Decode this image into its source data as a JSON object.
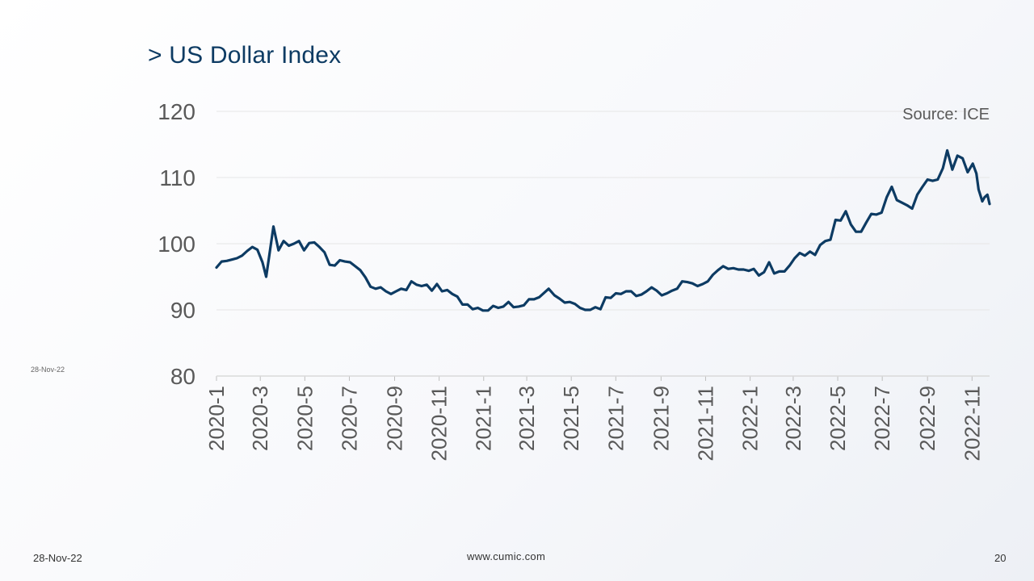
{
  "slide": {
    "title": "> US Dollar Index",
    "side_date": "28-Nov-22",
    "footer_date": "28-Nov-22",
    "footer_site": "www.cumic.com",
    "page_number": "20"
  },
  "colors": {
    "line": "#0d3b63",
    "grid": "#e6e6e6",
    "text": "#595959"
  },
  "chart_data": {
    "type": "line",
    "source": "Source: ICE",
    "ylim": [
      80,
      120
    ],
    "yticks": [
      80,
      90,
      100,
      110,
      120
    ],
    "xticks": [
      "2020-1",
      "2020-3",
      "2020-5",
      "2020-7",
      "2020-9",
      "2020-11",
      "2021-1",
      "2021-3",
      "2021-5",
      "2021-7",
      "2021-9",
      "2021-11",
      "2022-1",
      "2022-3",
      "2022-5",
      "2022-7",
      "2022-9",
      "2022-11"
    ],
    "grid": "horizontal",
    "series": [
      {
        "points": [
          [
            "2020-01-01",
            96.4
          ],
          [
            "2020-01-08",
            97.3
          ],
          [
            "2020-01-15",
            97.4
          ],
          [
            "2020-01-22",
            97.6
          ],
          [
            "2020-01-29",
            97.8
          ],
          [
            "2020-02-05",
            98.2
          ],
          [
            "2020-02-12",
            98.9
          ],
          [
            "2020-02-19",
            99.5
          ],
          [
            "2020-02-26",
            99.1
          ],
          [
            "2020-03-04",
            97.2
          ],
          [
            "2020-03-09",
            95.0
          ],
          [
            "2020-03-13",
            98.0
          ],
          [
            "2020-03-19",
            102.6
          ],
          [
            "2020-03-26",
            99.0
          ],
          [
            "2020-04-02",
            100.4
          ],
          [
            "2020-04-09",
            99.7
          ],
          [
            "2020-04-16",
            100.0
          ],
          [
            "2020-04-23",
            100.4
          ],
          [
            "2020-04-30",
            99.0
          ],
          [
            "2020-05-07",
            100.1
          ],
          [
            "2020-05-14",
            100.2
          ],
          [
            "2020-05-21",
            99.5
          ],
          [
            "2020-05-28",
            98.7
          ],
          [
            "2020-06-04",
            96.8
          ],
          [
            "2020-06-11",
            96.7
          ],
          [
            "2020-06-18",
            97.5
          ],
          [
            "2020-06-25",
            97.3
          ],
          [
            "2020-07-02",
            97.2
          ],
          [
            "2020-07-09",
            96.6
          ],
          [
            "2020-07-16",
            96.0
          ],
          [
            "2020-07-23",
            94.9
          ],
          [
            "2020-07-30",
            93.5
          ],
          [
            "2020-08-06",
            93.2
          ],
          [
            "2020-08-13",
            93.4
          ],
          [
            "2020-08-20",
            92.8
          ],
          [
            "2020-08-27",
            92.4
          ],
          [
            "2020-09-03",
            92.8
          ],
          [
            "2020-09-10",
            93.2
          ],
          [
            "2020-09-17",
            93.0
          ],
          [
            "2020-09-24",
            94.3
          ],
          [
            "2020-10-01",
            93.8
          ],
          [
            "2020-10-08",
            93.6
          ],
          [
            "2020-10-15",
            93.8
          ],
          [
            "2020-10-22",
            92.9
          ],
          [
            "2020-10-29",
            93.9
          ],
          [
            "2020-11-05",
            92.8
          ],
          [
            "2020-11-12",
            93.0
          ],
          [
            "2020-11-19",
            92.4
          ],
          [
            "2020-11-26",
            92.0
          ],
          [
            "2020-12-03",
            90.8
          ],
          [
            "2020-12-10",
            90.8
          ],
          [
            "2020-12-17",
            90.1
          ],
          [
            "2020-12-24",
            90.3
          ],
          [
            "2020-12-31",
            89.9
          ],
          [
            "2021-01-07",
            89.9
          ],
          [
            "2021-01-14",
            90.6
          ],
          [
            "2021-01-21",
            90.3
          ],
          [
            "2021-01-28",
            90.5
          ],
          [
            "2021-02-04",
            91.2
          ],
          [
            "2021-02-11",
            90.4
          ],
          [
            "2021-02-18",
            90.5
          ],
          [
            "2021-02-25",
            90.7
          ],
          [
            "2021-03-04",
            91.6
          ],
          [
            "2021-03-11",
            91.6
          ],
          [
            "2021-03-18",
            91.9
          ],
          [
            "2021-03-25",
            92.6
          ],
          [
            "2021-03-31",
            93.2
          ],
          [
            "2021-04-08",
            92.2
          ],
          [
            "2021-04-15",
            91.7
          ],
          [
            "2021-04-22",
            91.1
          ],
          [
            "2021-04-29",
            91.2
          ],
          [
            "2021-05-06",
            90.9
          ],
          [
            "2021-05-13",
            90.3
          ],
          [
            "2021-05-20",
            90.0
          ],
          [
            "2021-05-27",
            90.0
          ],
          [
            "2021-06-03",
            90.4
          ],
          [
            "2021-06-10",
            90.1
          ],
          [
            "2021-06-17",
            91.9
          ],
          [
            "2021-06-24",
            91.8
          ],
          [
            "2021-07-01",
            92.5
          ],
          [
            "2021-07-08",
            92.4
          ],
          [
            "2021-07-15",
            92.8
          ],
          [
            "2021-07-22",
            92.8
          ],
          [
            "2021-07-29",
            92.1
          ],
          [
            "2021-08-05",
            92.3
          ],
          [
            "2021-08-12",
            92.8
          ],
          [
            "2021-08-19",
            93.4
          ],
          [
            "2021-08-26",
            92.9
          ],
          [
            "2021-09-02",
            92.2
          ],
          [
            "2021-09-09",
            92.5
          ],
          [
            "2021-09-16",
            92.9
          ],
          [
            "2021-09-23",
            93.2
          ],
          [
            "2021-09-30",
            94.3
          ],
          [
            "2021-10-07",
            94.2
          ],
          [
            "2021-10-14",
            94.0
          ],
          [
            "2021-10-21",
            93.6
          ],
          [
            "2021-10-28",
            93.9
          ],
          [
            "2021-11-04",
            94.3
          ],
          [
            "2021-11-11",
            95.3
          ],
          [
            "2021-11-18",
            96.0
          ],
          [
            "2021-11-25",
            96.6
          ],
          [
            "2021-12-02",
            96.2
          ],
          [
            "2021-12-09",
            96.3
          ],
          [
            "2021-12-16",
            96.1
          ],
          [
            "2021-12-23",
            96.1
          ],
          [
            "2021-12-30",
            95.9
          ],
          [
            "2022-01-06",
            96.2
          ],
          [
            "2022-01-13",
            95.2
          ],
          [
            "2022-01-20",
            95.7
          ],
          [
            "2022-01-27",
            97.2
          ],
          [
            "2022-02-03",
            95.5
          ],
          [
            "2022-02-10",
            95.8
          ],
          [
            "2022-02-17",
            95.8
          ],
          [
            "2022-02-24",
            96.7
          ],
          [
            "2022-03-03",
            97.8
          ],
          [
            "2022-03-10",
            98.6
          ],
          [
            "2022-03-17",
            98.2
          ],
          [
            "2022-03-24",
            98.8
          ],
          [
            "2022-03-31",
            98.3
          ],
          [
            "2022-04-07",
            99.8
          ],
          [
            "2022-04-14",
            100.4
          ],
          [
            "2022-04-21",
            100.6
          ],
          [
            "2022-04-28",
            103.6
          ],
          [
            "2022-05-05",
            103.5
          ],
          [
            "2022-05-12",
            104.9
          ],
          [
            "2022-05-19",
            102.9
          ],
          [
            "2022-05-26",
            101.8
          ],
          [
            "2022-06-02",
            101.8
          ],
          [
            "2022-06-09",
            103.2
          ],
          [
            "2022-06-16",
            104.5
          ],
          [
            "2022-06-23",
            104.4
          ],
          [
            "2022-06-30",
            104.7
          ],
          [
            "2022-07-07",
            107.0
          ],
          [
            "2022-07-14",
            108.6
          ],
          [
            "2022-07-21",
            106.6
          ],
          [
            "2022-07-28",
            106.2
          ],
          [
            "2022-08-04",
            105.8
          ],
          [
            "2022-08-11",
            105.3
          ],
          [
            "2022-08-18",
            107.4
          ],
          [
            "2022-08-25",
            108.6
          ],
          [
            "2022-09-01",
            109.7
          ],
          [
            "2022-09-08",
            109.5
          ],
          [
            "2022-09-15",
            109.7
          ],
          [
            "2022-09-22",
            111.4
          ],
          [
            "2022-09-28",
            114.1
          ],
          [
            "2022-10-05",
            111.2
          ],
          [
            "2022-10-12",
            113.3
          ],
          [
            "2022-10-19",
            112.9
          ],
          [
            "2022-10-26",
            110.8
          ],
          [
            "2022-11-02",
            112.1
          ],
          [
            "2022-11-07",
            110.6
          ],
          [
            "2022-11-10",
            108.2
          ],
          [
            "2022-11-15",
            106.4
          ],
          [
            "2022-11-18",
            107.0
          ],
          [
            "2022-11-22",
            107.4
          ],
          [
            "2022-11-25",
            106.0
          ]
        ]
      }
    ]
  }
}
